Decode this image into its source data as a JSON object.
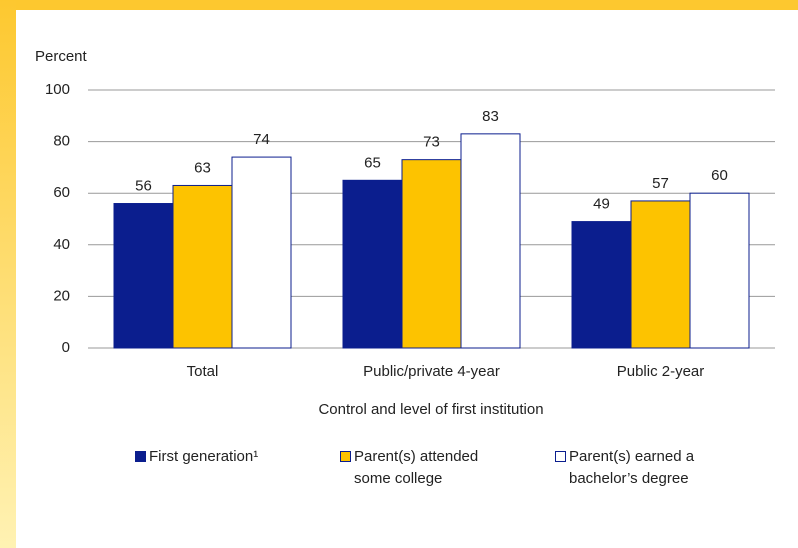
{
  "chart_data": {
    "type": "bar",
    "y_label": "Percent",
    "x_label": "Control and level of first institution",
    "categories": [
      "Total",
      "Public/private 4-year",
      "Public 2-year"
    ],
    "series": [
      {
        "name": "First generation¹",
        "color": "#0b1e8e",
        "values": [
          56,
          65,
          49
        ]
      },
      {
        "name": "Parent(s) attended some college",
        "color": "#fdc300",
        "values": [
          63,
          73,
          57
        ]
      },
      {
        "name": "Parent(s) earned a bachelor’s degree",
        "color": "#ffffff",
        "values": [
          74,
          83,
          60
        ]
      }
    ],
    "ylim": [
      0,
      100
    ],
    "yticks": [
      0,
      20,
      40,
      60,
      80,
      100
    ],
    "grid": true
  }
}
